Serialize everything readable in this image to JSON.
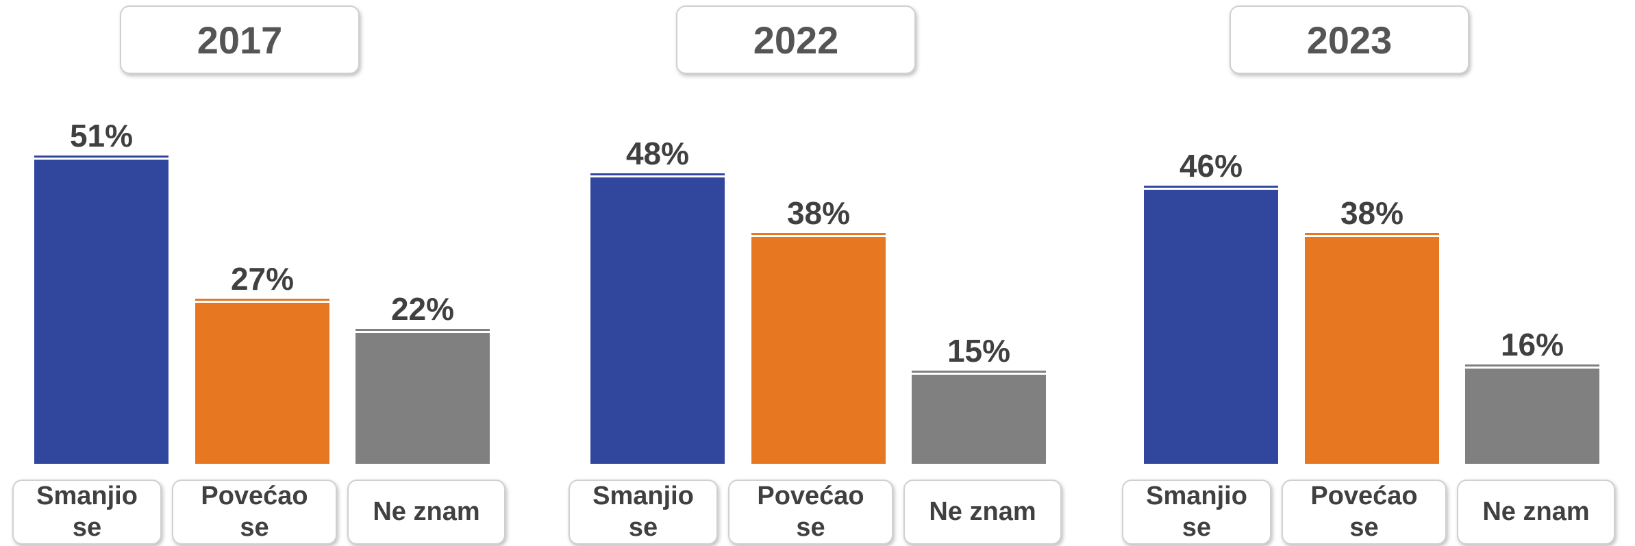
{
  "chart_data": [
    {
      "type": "bar",
      "title": "2017",
      "categories": [
        "Smanjio se",
        "Povećao se",
        "Ne znam"
      ],
      "values": [
        51,
        27,
        22
      ],
      "value_labels": [
        "51%",
        "27%",
        "22%"
      ],
      "colors": [
        "#31479e",
        "#e87722",
        "#808080"
      ]
    },
    {
      "type": "bar",
      "title": "2022",
      "categories": [
        "Smanjio se",
        "Povećao se",
        "Ne znam"
      ],
      "values": [
        48,
        38,
        15
      ],
      "value_labels": [
        "48%",
        "38%",
        "15%"
      ],
      "colors": [
        "#31479e",
        "#e87722",
        "#808080"
      ]
    },
    {
      "type": "bar",
      "title": "2023",
      "categories": [
        "Smanjio se",
        "Povećao se",
        "Ne znam"
      ],
      "values": [
        46,
        38,
        16
      ],
      "value_labels": [
        "46%",
        "38%",
        "16%"
      ],
      "colors": [
        "#31479e",
        "#e87722",
        "#808080"
      ]
    }
  ]
}
